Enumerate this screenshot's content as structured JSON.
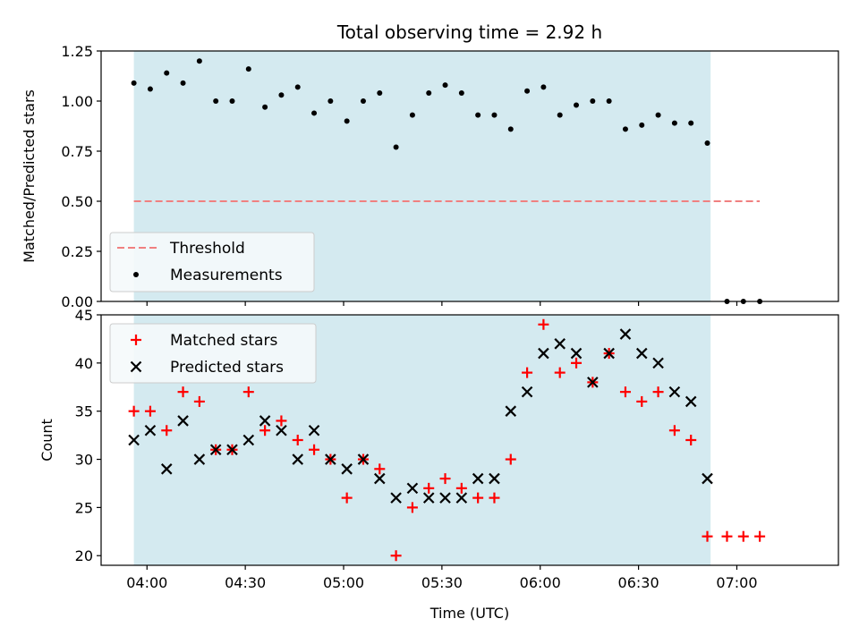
{
  "chart_data": [
    {
      "type": "scatter",
      "title": "Total observing time = 2.92 h",
      "xlabel": "",
      "ylabel": "Matched/Predicted stars",
      "ylim": [
        0,
        1.25
      ],
      "yticks": [
        "0.00",
        "0.25",
        "0.50",
        "0.75",
        "1.00",
        "1.25"
      ],
      "shaded_span": [
        "03:56",
        "06:52"
      ],
      "colors": {
        "shade": "#d4eaf0",
        "threshold": "#f08080",
        "points": "#000000"
      },
      "legend": {
        "placement": "lower-left",
        "entries": [
          "Threshold",
          "Measurements"
        ]
      },
      "threshold": {
        "name": "Threshold",
        "value": 0.5,
        "x_range": [
          "03:56",
          "07:07"
        ]
      },
      "series": [
        {
          "name": "Measurements",
          "x": [
            "03:56",
            "04:01",
            "04:06",
            "04:11",
            "04:16",
            "04:21",
            "04:26",
            "04:31",
            "04:36",
            "04:41",
            "04:46",
            "04:51",
            "04:56",
            "05:01",
            "05:06",
            "05:11",
            "05:16",
            "05:21",
            "05:26",
            "05:31",
            "05:36",
            "05:41",
            "05:46",
            "05:51",
            "05:56",
            "06:01",
            "06:06",
            "06:11",
            "06:16",
            "06:21",
            "06:26",
            "06:31",
            "06:36",
            "06:41",
            "06:46",
            "06:51",
            "06:57",
            "07:02",
            "07:07"
          ],
          "values": [
            1.09,
            1.06,
            1.14,
            1.09,
            1.2,
            1.0,
            1.0,
            1.16,
            0.97,
            1.03,
            1.07,
            0.94,
            1.0,
            0.9,
            1.0,
            1.04,
            0.77,
            0.93,
            1.04,
            1.08,
            1.04,
            0.93,
            0.93,
            0.86,
            1.05,
            1.07,
            0.93,
            0.98,
            1.0,
            1.0,
            0.86,
            0.88,
            0.93,
            0.89,
            0.89,
            0.79,
            0.0,
            0.0,
            0.0
          ]
        }
      ]
    },
    {
      "type": "scatter",
      "title": "",
      "xlabel": "Time (UTC)",
      "ylabel": "Count",
      "ylim": [
        19,
        45
      ],
      "yticks": [
        "20",
        "25",
        "30",
        "35",
        "40",
        "45"
      ],
      "xticks": [
        "04:00",
        "04:30",
        "05:00",
        "05:30",
        "06:00",
        "06:30",
        "07:00"
      ],
      "xlim": [
        "03:46",
        "07:31"
      ],
      "shaded_span": [
        "03:56",
        "06:52"
      ],
      "colors": {
        "shade": "#d4eaf0",
        "matched": "#ff0000",
        "predicted": "#000000"
      },
      "legend": {
        "placement": "top-left",
        "entries": [
          "Matched stars",
          "Predicted stars"
        ]
      },
      "series": [
        {
          "name": "Matched stars",
          "marker": "plus",
          "x": [
            "03:56",
            "04:01",
            "04:06",
            "04:11",
            "04:16",
            "04:21",
            "04:26",
            "04:31",
            "04:36",
            "04:41",
            "04:46",
            "04:51",
            "04:56",
            "05:01",
            "05:06",
            "05:11",
            "05:16",
            "05:21",
            "05:26",
            "05:31",
            "05:36",
            "05:41",
            "05:46",
            "05:51",
            "05:56",
            "06:01",
            "06:06",
            "06:11",
            "06:16",
            "06:21",
            "06:26",
            "06:31",
            "06:36",
            "06:41",
            "06:46",
            "06:51",
            "06:57",
            "07:02",
            "07:07"
          ],
          "values": [
            35,
            35,
            33,
            37,
            36,
            31,
            31,
            37,
            33,
            34,
            32,
            31,
            30,
            26,
            30,
            29,
            20,
            25,
            27,
            28,
            27,
            26,
            26,
            30,
            39,
            44,
            39,
            40,
            38,
            41,
            37,
            36,
            37,
            33,
            32,
            22,
            22,
            22,
            22
          ]
        },
        {
          "name": "Predicted stars",
          "marker": "x",
          "x": [
            "03:56",
            "04:01",
            "04:06",
            "04:11",
            "04:16",
            "04:21",
            "04:26",
            "04:31",
            "04:36",
            "04:41",
            "04:46",
            "04:51",
            "04:56",
            "05:01",
            "05:06",
            "05:11",
            "05:16",
            "05:21",
            "05:26",
            "05:31",
            "05:36",
            "05:41",
            "05:46",
            "05:51",
            "05:56",
            "06:01",
            "06:06",
            "06:11",
            "06:16",
            "06:21",
            "06:26",
            "06:31",
            "06:36",
            "06:41",
            "06:46",
            "06:51"
          ],
          "values": [
            32,
            33,
            29,
            34,
            30,
            31,
            31,
            32,
            34,
            33,
            30,
            33,
            30,
            29,
            30,
            28,
            26,
            27,
            26,
            26,
            26,
            28,
            28,
            35,
            37,
            41,
            42,
            41,
            38,
            41,
            43,
            41,
            40,
            37,
            36,
            28
          ]
        }
      ]
    }
  ]
}
